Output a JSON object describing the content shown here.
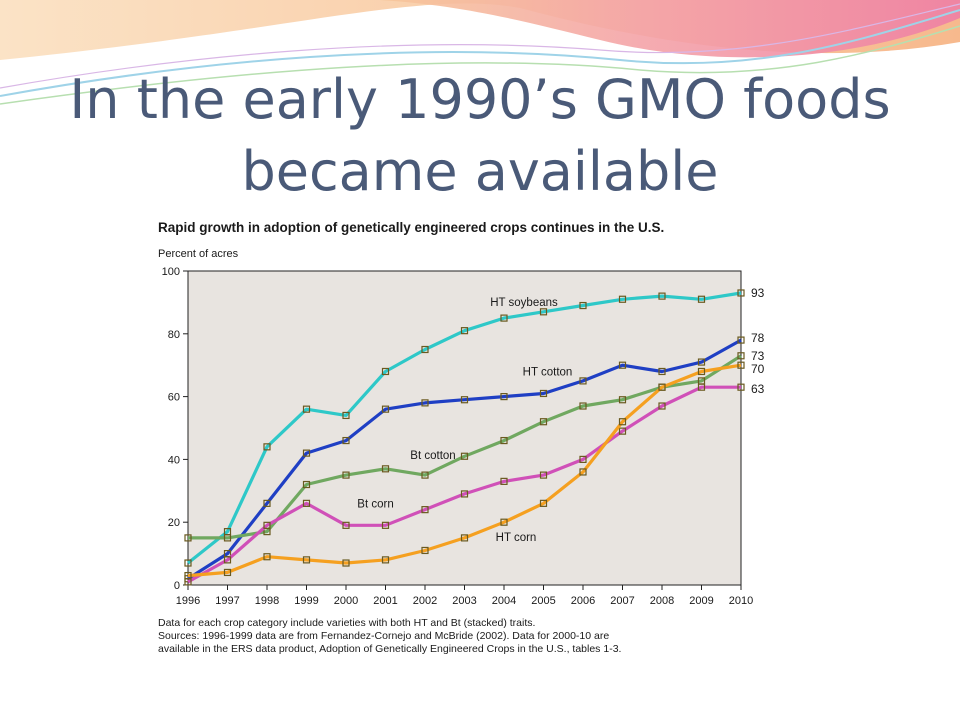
{
  "slide": {
    "title_line1": "In the early 1990’s GMO foods",
    "title_line2": "became available"
  },
  "colors": {
    "plot_bg": "#e8e4e0",
    "ht_soybeans": "#2ec8c8",
    "ht_cotton": "#1f3fc4",
    "bt_cotton": "#70a860",
    "bt_corn": "#d050b8",
    "ht_corn": "#f5a020"
  },
  "chart_data": {
    "type": "line",
    "title": "Rapid growth in adoption of genetically engineered crops continues in the U.S.",
    "ylabel": "Percent of acres",
    "xlabel": "",
    "ylim": [
      0,
      100
    ],
    "yticks": [
      "0",
      "20",
      "40",
      "60",
      "80",
      "100"
    ],
    "x": [
      "1996",
      "1997",
      "1998",
      "1999",
      "2000",
      "2001",
      "2002",
      "2003",
      "2004",
      "2005",
      "2006",
      "2007",
      "2008",
      "2009",
      "2010"
    ],
    "grid": false,
    "series": [
      {
        "name": "HT soybeans",
        "color": "#2ec8c8",
        "end_label": "93",
        "values": [
          7,
          17,
          44,
          56,
          54,
          68,
          75,
          81,
          85,
          87,
          89,
          91,
          92,
          91,
          93
        ]
      },
      {
        "name": "HT cotton",
        "color": "#1f3fc4",
        "end_label": "78",
        "values": [
          2,
          10,
          26,
          42,
          46,
          56,
          58,
          59,
          60,
          61,
          65,
          70,
          68,
          71,
          78
        ]
      },
      {
        "name": "Bt cotton",
        "color": "#70a860",
        "end_label": "73",
        "values": [
          15,
          15,
          17,
          32,
          35,
          37,
          35,
          41,
          46,
          52,
          57,
          59,
          63,
          65,
          73
        ]
      },
      {
        "name": "Bt corn",
        "color": "#d050b8",
        "end_label": "63",
        "values": [
          1,
          8,
          19,
          26,
          19,
          19,
          24,
          29,
          33,
          35,
          40,
          49,
          57,
          63,
          63
        ]
      },
      {
        "name": "HT corn",
        "color": "#f5a020",
        "end_label": "70",
        "values": [
          3,
          4,
          9,
          8,
          7,
          8,
          11,
          15,
          20,
          26,
          36,
          52,
          63,
          68,
          70
        ]
      }
    ],
    "notes": [
      "Data for each crop category include varieties with both HT and Bt (stacked) traits.",
      "Sources: 1996-1999 data are from Fernandez-Cornejo and McBride (2002). Data for 2000-10 are",
      "available in the ERS data product, Adoption of Genetically Engineered Crops in the U.S., tables 1-3."
    ]
  }
}
